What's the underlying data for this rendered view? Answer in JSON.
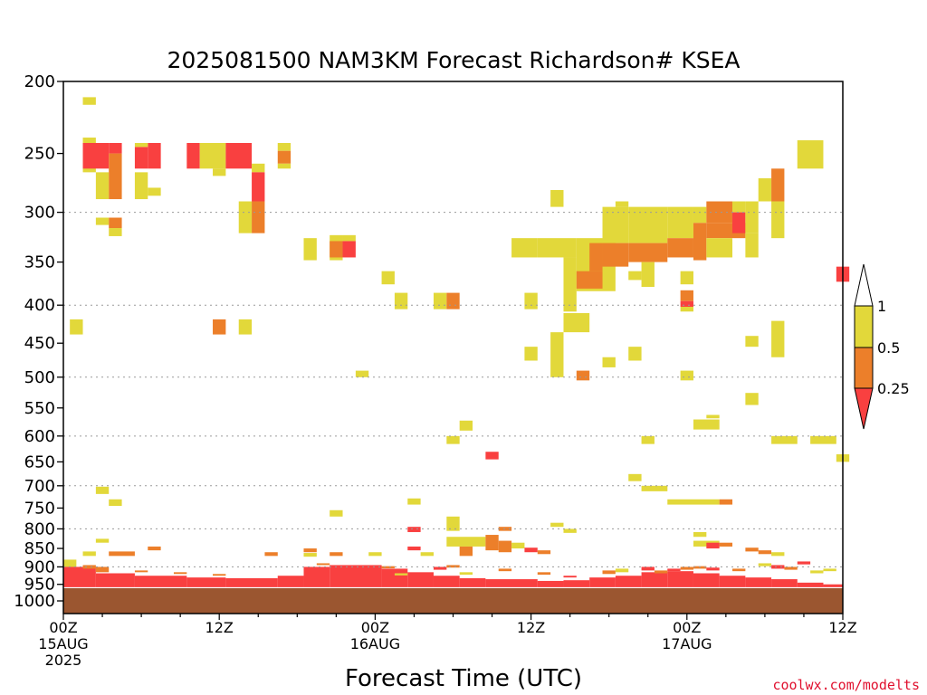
{
  "colors": {
    "yellow": "#e2d83a",
    "orange": "#ec7f2a",
    "red": "#f94040",
    "ground": "#9b5630",
    "grid": "#9a9a9a"
  },
  "chart_data": {
    "type": "heatmap",
    "title": "2025081500 NAM3KM Forecast Richardson# KSEA",
    "xlabel": "Forecast Time (UTC)",
    "ylabel": "",
    "credit": "coolwx.com/modelts",
    "x_unit": "forecast hour",
    "xlim": [
      0,
      60
    ],
    "x_ticks": [
      {
        "h": 0,
        "lines": [
          "00Z",
          "15AUG",
          "2025"
        ]
      },
      {
        "h": 12,
        "lines": [
          "12Z"
        ]
      },
      {
        "h": 24,
        "lines": [
          "00Z",
          "16AUG"
        ]
      },
      {
        "h": 36,
        "lines": [
          "12Z"
        ]
      },
      {
        "h": 48,
        "lines": [
          "00Z",
          "17AUG"
        ]
      },
      {
        "h": 60,
        "lines": [
          "12Z"
        ]
      }
    ],
    "y_unit": "hPa",
    "y_scale": "log",
    "ylim": [
      1040,
      200
    ],
    "y_ticks": [
      200,
      250,
      300,
      350,
      400,
      450,
      500,
      550,
      600,
      650,
      700,
      750,
      800,
      850,
      900,
      950,
      1000
    ],
    "grid_levels": [
      300,
      400,
      500,
      600,
      700,
      800,
      900
    ],
    "colorbar": {
      "labels": [
        "1",
        "0.5",
        "0.25"
      ],
      "bins": [
        {
          "label": "< 0.25",
          "color": "#f94040"
        },
        {
          "label": "0.25-0.5",
          "color": "#ec7f2a"
        },
        {
          "label": "0.5-1",
          "color": "#e2d83a"
        }
      ]
    },
    "cells_columns": [
      "hour_start",
      "hour_end",
      "p_top_hPa",
      "p_bottom_hPa",
      "category"
    ],
    "cells": [
      [
        1.5,
        2.5,
        210,
        215,
        "yellow"
      ],
      [
        1.5,
        2.5,
        238,
        265,
        "yellow"
      ],
      [
        1.5,
        3.5,
        242,
        262,
        "red"
      ],
      [
        2.5,
        3.5,
        265,
        288,
        "yellow"
      ],
      [
        3.5,
        4.5,
        242,
        250,
        "red"
      ],
      [
        3.5,
        4.5,
        250,
        288,
        "orange"
      ],
      [
        2.5,
        3.5,
        305,
        312,
        "yellow"
      ],
      [
        3.5,
        4.5,
        305,
        315,
        "orange"
      ],
      [
        3.5,
        4.5,
        315,
        323,
        "yellow"
      ],
      [
        5.5,
        6.5,
        245,
        262,
        "red"
      ],
      [
        6.5,
        7.5,
        242,
        262,
        "red"
      ],
      [
        5.5,
        6.5,
        265,
        288,
        "yellow"
      ],
      [
        6.5,
        7.5,
        278,
        285,
        "yellow"
      ],
      [
        5.5,
        6.5,
        242,
        245,
        "yellow"
      ],
      [
        9.5,
        10.5,
        242,
        262,
        "red"
      ],
      [
        10.5,
        12.5,
        242,
        262,
        "yellow"
      ],
      [
        11.5,
        12.5,
        262,
        268,
        "yellow"
      ],
      [
        12.5,
        14.5,
        242,
        262,
        "red"
      ],
      [
        14.5,
        15.5,
        258,
        265,
        "yellow"
      ],
      [
        14.5,
        15.5,
        265,
        290,
        "red"
      ],
      [
        13.5,
        14.5,
        290,
        320,
        "yellow"
      ],
      [
        14.5,
        15.5,
        290,
        320,
        "orange"
      ],
      [
        16.5,
        17.5,
        242,
        248,
        "yellow"
      ],
      [
        16.5,
        17.5,
        248,
        258,
        "orange"
      ],
      [
        16.5,
        17.5,
        258,
        262,
        "yellow"
      ],
      [
        18.5,
        19.5,
        325,
        348,
        "yellow"
      ],
      [
        20.5,
        21.5,
        322,
        348,
        "yellow"
      ],
      [
        20.5,
        21.5,
        328,
        345,
        "orange"
      ],
      [
        21.5,
        22.5,
        322,
        328,
        "yellow"
      ],
      [
        21.5,
        22.5,
        328,
        345,
        "red"
      ],
      [
        0.5,
        1.5,
        418,
        438,
        "yellow"
      ],
      [
        11.5,
        12.5,
        418,
        438,
        "orange"
      ],
      [
        13.5,
        14.5,
        418,
        438,
        "yellow"
      ],
      [
        24.5,
        25.5,
        360,
        375,
        "yellow"
      ],
      [
        25.5,
        26.5,
        385,
        405,
        "yellow"
      ],
      [
        28.5,
        29.5,
        385,
        405,
        "yellow"
      ],
      [
        29.5,
        30.5,
        385,
        405,
        "orange"
      ],
      [
        22.5,
        23.5,
        490,
        500,
        "yellow"
      ],
      [
        34.5,
        36.5,
        325,
        345,
        "yellow"
      ],
      [
        35.5,
        36.5,
        385,
        405,
        "yellow"
      ],
      [
        35.5,
        36.5,
        455,
        475,
        "yellow"
      ],
      [
        37.5,
        38.5,
        280,
        295,
        "yellow"
      ],
      [
        36.5,
        39.5,
        325,
        345,
        "yellow"
      ],
      [
        38.5,
        39.5,
        345,
        408,
        "yellow"
      ],
      [
        39.5,
        42.5,
        325,
        383,
        "yellow"
      ],
      [
        39.5,
        41.5,
        360,
        380,
        "orange"
      ],
      [
        40.5,
        41.5,
        330,
        360,
        "orange"
      ],
      [
        41.5,
        43.5,
        295,
        330,
        "yellow"
      ],
      [
        41.5,
        43.5,
        330,
        355,
        "orange"
      ],
      [
        42.5,
        43.5,
        290,
        295,
        "yellow"
      ],
      [
        43.5,
        46.5,
        295,
        330,
        "yellow"
      ],
      [
        43.5,
        46.5,
        330,
        350,
        "orange"
      ],
      [
        43.5,
        44.5,
        360,
        370,
        "yellow"
      ],
      [
        44.5,
        45.5,
        350,
        378,
        "yellow"
      ],
      [
        46.5,
        48.5,
        295,
        325,
        "yellow"
      ],
      [
        46.5,
        48.5,
        325,
        345,
        "orange"
      ],
      [
        47.5,
        48.5,
        360,
        375,
        "yellow"
      ],
      [
        48.5,
        49.5,
        295,
        310,
        "yellow"
      ],
      [
        48.5,
        49.5,
        310,
        348,
        "orange"
      ],
      [
        49.5,
        51.5,
        290,
        310,
        "orange"
      ],
      [
        49.5,
        52.5,
        310,
        325,
        "orange"
      ],
      [
        49.5,
        51.5,
        325,
        345,
        "yellow"
      ],
      [
        51.5,
        52.5,
        290,
        300,
        "yellow"
      ],
      [
        51.5,
        52.5,
        300,
        320,
        "red"
      ],
      [
        52.5,
        53.5,
        290,
        320,
        "yellow"
      ],
      [
        52.5,
        53.5,
        320,
        345,
        "yellow"
      ],
      [
        53.5,
        54.5,
        270,
        290,
        "yellow"
      ],
      [
        54.5,
        55.5,
        262,
        290,
        "orange"
      ],
      [
        54.5,
        55.5,
        290,
        325,
        "yellow"
      ],
      [
        56.5,
        58.5,
        240,
        262,
        "yellow"
      ],
      [
        59.5,
        60.5,
        355,
        372,
        "red"
      ],
      [
        38.5,
        40.5,
        410,
        435,
        "yellow"
      ],
      [
        47.5,
        48.5,
        382,
        395,
        "orange"
      ],
      [
        47.5,
        48.5,
        395,
        402,
        "red"
      ],
      [
        47.5,
        48.5,
        402,
        408,
        "yellow"
      ],
      [
        37.5,
        38.5,
        435,
        500,
        "yellow"
      ],
      [
        41.5,
        42.5,
        470,
        485,
        "yellow"
      ],
      [
        43.5,
        44.5,
        455,
        475,
        "yellow"
      ],
      [
        39.5,
        40.5,
        490,
        505,
        "orange"
      ],
      [
        47.5,
        48.5,
        490,
        505,
        "yellow"
      ],
      [
        52.5,
        53.5,
        440,
        455,
        "yellow"
      ],
      [
        54.5,
        55.5,
        420,
        470,
        "yellow"
      ],
      [
        52.5,
        53.5,
        525,
        545,
        "yellow"
      ],
      [
        48.5,
        50.5,
        570,
        588,
        "yellow"
      ],
      [
        49.5,
        50.5,
        562,
        568,
        "yellow"
      ],
      [
        30.5,
        31.5,
        572,
        590,
        "yellow"
      ],
      [
        29.5,
        30.5,
        600,
        615,
        "yellow"
      ],
      [
        32.5,
        33.5,
        630,
        645,
        "red"
      ],
      [
        44.5,
        45.5,
        600,
        615,
        "yellow"
      ],
      [
        54.5,
        56.5,
        600,
        615,
        "yellow"
      ],
      [
        57.5,
        59.5,
        600,
        615,
        "yellow"
      ],
      [
        59.5,
        60.5,
        635,
        650,
        "yellow"
      ],
      [
        43.5,
        44.5,
        675,
        690,
        "yellow"
      ],
      [
        44.5,
        46.5,
        700,
        712,
        "yellow"
      ],
      [
        2.5,
        3.5,
        702,
        718,
        "yellow"
      ],
      [
        3.5,
        4.5,
        730,
        745,
        "yellow"
      ],
      [
        26.5,
        27.5,
        728,
        742,
        "yellow"
      ],
      [
        20.5,
        21.5,
        755,
        770,
        "yellow"
      ],
      [
        46.5,
        50.5,
        730,
        742,
        "yellow"
      ],
      [
        50.5,
        51.5,
        730,
        742,
        "orange"
      ],
      [
        29.5,
        30.5,
        770,
        805,
        "yellow"
      ],
      [
        26.5,
        27.5,
        795,
        808,
        "red"
      ],
      [
        33.5,
        34.5,
        795,
        805,
        "orange"
      ],
      [
        37.5,
        38.5,
        785,
        795,
        "yellow"
      ],
      [
        38.5,
        39.5,
        800,
        810,
        "yellow"
      ],
      [
        29.5,
        32.5,
        820,
        845,
        "yellow"
      ],
      [
        30.5,
        31.5,
        845,
        870,
        "orange"
      ],
      [
        32.5,
        33.5,
        815,
        855,
        "orange"
      ],
      [
        33.5,
        34.5,
        830,
        860,
        "orange"
      ],
      [
        34.5,
        35.5,
        835,
        850,
        "yellow"
      ],
      [
        48.5,
        49.5,
        808,
        820,
        "yellow"
      ],
      [
        48.5,
        50.5,
        830,
        845,
        "yellow"
      ],
      [
        49.5,
        50.5,
        835,
        850,
        "red"
      ],
      [
        50.5,
        51.5,
        835,
        845,
        "orange"
      ],
      [
        2.5,
        3.5,
        825,
        835,
        "yellow"
      ],
      [
        1.5,
        2.5,
        858,
        870,
        "yellow"
      ],
      [
        3.5,
        5.5,
        858,
        870,
        "orange"
      ],
      [
        6.5,
        7.5,
        845,
        855,
        "orange"
      ],
      [
        15.5,
        16.5,
        860,
        870,
        "orange"
      ],
      [
        18.5,
        19.5,
        850,
        860,
        "orange"
      ],
      [
        18.5,
        19.5,
        862,
        872,
        "yellow"
      ],
      [
        20.5,
        21.5,
        860,
        870,
        "orange"
      ],
      [
        23.5,
        24.5,
        860,
        870,
        "yellow"
      ],
      [
        26.5,
        27.5,
        845,
        855,
        "red"
      ],
      [
        27.5,
        28.5,
        860,
        870,
        "yellow"
      ],
      [
        35.5,
        36.5,
        848,
        860,
        "red"
      ],
      [
        36.5,
        37.5,
        855,
        865,
        "orange"
      ],
      [
        52.5,
        53.5,
        848,
        858,
        "orange"
      ],
      [
        53.5,
        54.5,
        855,
        865,
        "orange"
      ],
      [
        54.5,
        55.5,
        860,
        870,
        "yellow"
      ],
      [
        0.0,
        1.0,
        880,
        900,
        "yellow"
      ],
      [
        0.0,
        2.5,
        900,
        960,
        "red"
      ],
      [
        1.5,
        2.5,
        895,
        905,
        "orange"
      ],
      [
        2.5,
        3.5,
        900,
        915,
        "orange"
      ],
      [
        2.5,
        5.5,
        918,
        960,
        "red"
      ],
      [
        5.5,
        9.5,
        925,
        960,
        "red"
      ],
      [
        9.5,
        12.5,
        930,
        960,
        "red"
      ],
      [
        12.5,
        16.5,
        932,
        960,
        "red"
      ],
      [
        16.5,
        18.5,
        925,
        960,
        "red"
      ],
      [
        18.5,
        20.5,
        900,
        960,
        "red"
      ],
      [
        20.5,
        24.5,
        895,
        960,
        "red"
      ],
      [
        24.5,
        26.5,
        905,
        960,
        "red"
      ],
      [
        26.5,
        28.5,
        915,
        960,
        "red"
      ],
      [
        28.5,
        30.5,
        925,
        960,
        "red"
      ],
      [
        30.5,
        32.5,
        932,
        960,
        "red"
      ],
      [
        32.5,
        36.5,
        935,
        960,
        "red"
      ],
      [
        36.5,
        38.5,
        940,
        960,
        "red"
      ],
      [
        38.5,
        40.5,
        938,
        960,
        "red"
      ],
      [
        40.5,
        42.5,
        930,
        960,
        "red"
      ],
      [
        42.5,
        44.5,
        925,
        960,
        "red"
      ],
      [
        44.5,
        46.5,
        915,
        960,
        "red"
      ],
      [
        46.5,
        48.5,
        912,
        960,
        "red"
      ],
      [
        48.5,
        50.5,
        918,
        960,
        "red"
      ],
      [
        50.5,
        52.5,
        925,
        960,
        "red"
      ],
      [
        52.5,
        54.5,
        930,
        960,
        "red"
      ],
      [
        54.5,
        56.5,
        935,
        960,
        "red"
      ],
      [
        56.5,
        58.5,
        945,
        960,
        "red"
      ],
      [
        58.5,
        60.0,
        950,
        960,
        "red"
      ],
      [
        5.5,
        6.5,
        910,
        915,
        "orange"
      ],
      [
        8.5,
        9.5,
        915,
        920,
        "orange"
      ],
      [
        11.5,
        12.5,
        920,
        925,
        "orange"
      ],
      [
        19.5,
        20.5,
        890,
        895,
        "orange"
      ],
      [
        24.5,
        25.5,
        898,
        904,
        "orange"
      ],
      [
        25.5,
        26.5,
        918,
        924,
        "yellow"
      ],
      [
        28.5,
        29.5,
        900,
        908,
        "red"
      ],
      [
        29.5,
        30.5,
        895,
        902,
        "orange"
      ],
      [
        30.5,
        31.5,
        915,
        922,
        "yellow"
      ],
      [
        33.5,
        34.5,
        905,
        912,
        "orange"
      ],
      [
        36.5,
        37.5,
        915,
        922,
        "orange"
      ],
      [
        38.5,
        39.5,
        925,
        930,
        "red"
      ],
      [
        41.5,
        42.5,
        910,
        920,
        "orange"
      ],
      [
        42.5,
        43.5,
        905,
        915,
        "yellow"
      ],
      [
        44.5,
        45.5,
        900,
        910,
        "red"
      ],
      [
        45.5,
        46.5,
        910,
        918,
        "orange"
      ],
      [
        46.5,
        47.5,
        905,
        912,
        "red"
      ],
      [
        47.5,
        48.5,
        900,
        908,
        "orange"
      ],
      [
        48.5,
        49.5,
        898,
        905,
        "orange"
      ],
      [
        49.5,
        50.5,
        902,
        910,
        "red"
      ],
      [
        51.5,
        52.5,
        905,
        912,
        "orange"
      ],
      [
        53.5,
        54.5,
        890,
        898,
        "yellow"
      ],
      [
        54.5,
        55.5,
        895,
        905,
        "red"
      ],
      [
        55.5,
        56.5,
        900,
        908,
        "orange"
      ],
      [
        56.5,
        57.5,
        885,
        893,
        "red"
      ],
      [
        57.5,
        58.5,
        910,
        918,
        "yellow"
      ],
      [
        58.5,
        59.5,
        905,
        912,
        "yellow"
      ],
      [
        0.0,
        60.0,
        960,
        1040,
        "ground"
      ]
    ]
  }
}
